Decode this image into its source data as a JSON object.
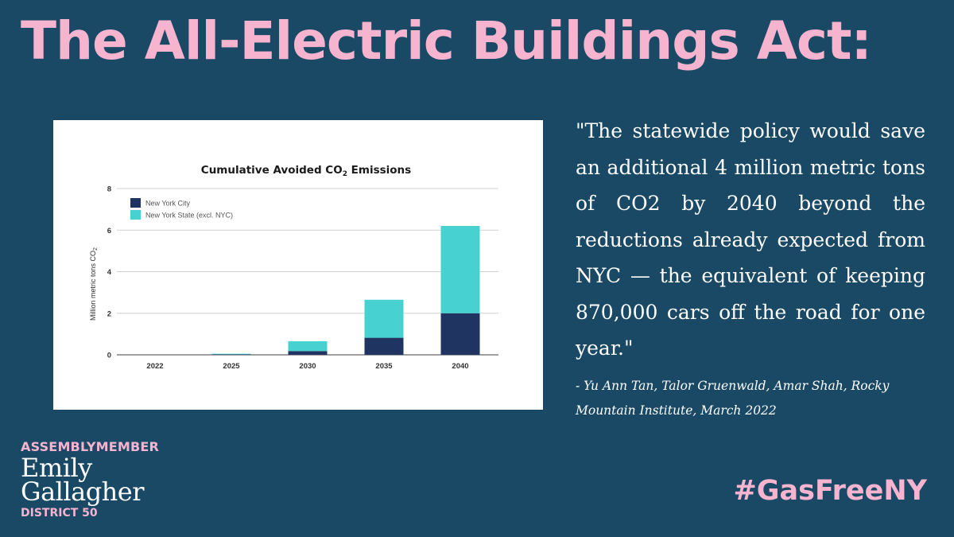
{
  "headline": "The All-Electric Buildings Act:",
  "quote": "\"The statewide policy would save an additional 4 million metric tons of CO2 by 2040 beyond the reductions already expected from NYC — the equivalent of keeping 870,000 cars off the road for one year.\"",
  "attribution": "- Yu Ann Tan, Talor Gruenwald, Amar Shah, Rocky Mountain Institute, March 2022",
  "signature": {
    "title": "ASSEMBLYMEMBER",
    "first_name": "Emily",
    "last_name": "Gallagher",
    "district": "DISTRICT 50"
  },
  "hashtag": "#GasFreeNY",
  "colors": {
    "background": "#1a4966",
    "accent_pink": "#f7b4cf",
    "nyc_series": "#1f3461",
    "nys_series": "#47d1d1"
  },
  "chart_data": {
    "type": "bar",
    "stacked": true,
    "title_prefix": "Cumulative Avoided CO",
    "title_sub": "2",
    "title_suffix": " Emissions",
    "xlabel": "",
    "ylabel_prefix": "Million metric tons CO",
    "ylabel_sub": "2",
    "categories": [
      "2022",
      "2025",
      "2030",
      "2035",
      "2040"
    ],
    "ylim": [
      0,
      8
    ],
    "yticks": [
      "0",
      "2",
      "4",
      "6",
      "8"
    ],
    "grid": true,
    "legend_position": "top-left",
    "series": [
      {
        "name": "New York City",
        "color": "#1f3461",
        "values": [
          0,
          0.02,
          0.18,
          0.82,
          2.0
        ]
      },
      {
        "name": "New York State (excl. NYC)",
        "color": "#47d1d1",
        "values": [
          0,
          0.03,
          0.47,
          1.83,
          4.2
        ]
      }
    ]
  }
}
